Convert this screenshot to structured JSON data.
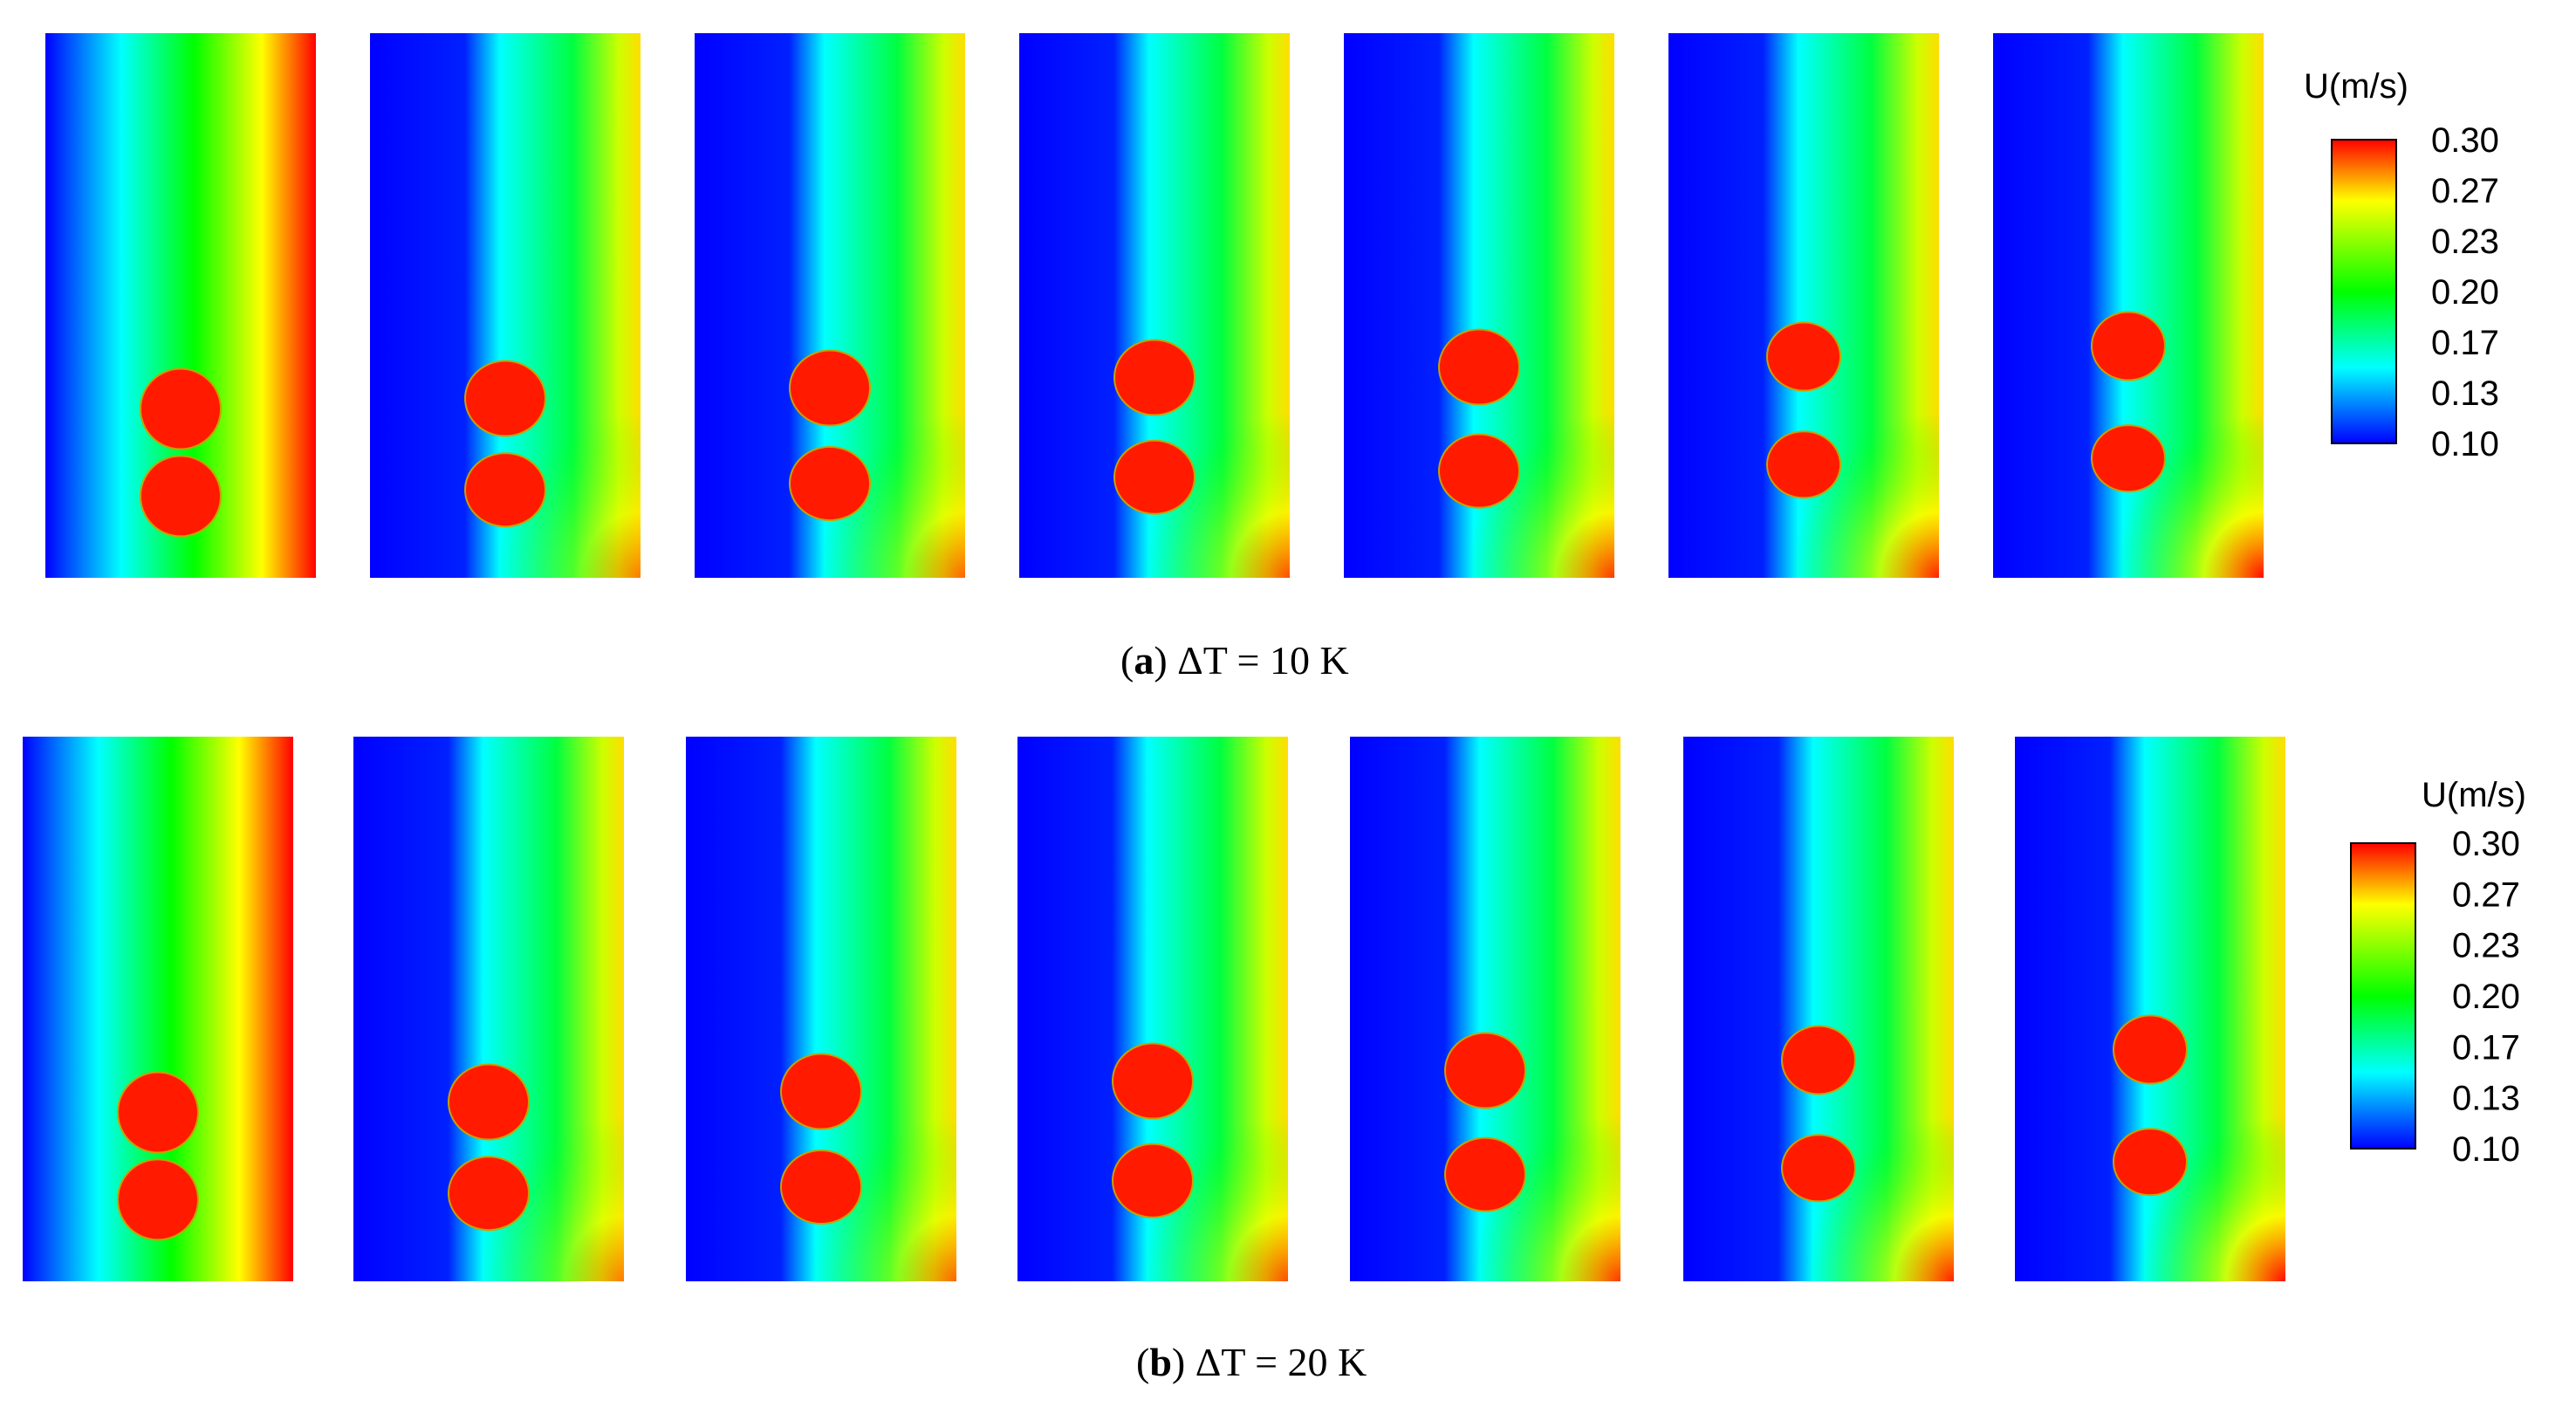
{
  "figure": {
    "rows": [
      {
        "caption": {
          "label": "a",
          "text": "ΔT = 10 K"
        },
        "colorbar": {
          "title": "U(m/s)",
          "ticks": [
            "0.30",
            "0.27",
            "0.23",
            "0.20",
            "0.17",
            "0.13",
            "0.10"
          ]
        },
        "panel_count": 7
      },
      {
        "caption": {
          "label": "b",
          "text": "ΔT = 20 K"
        },
        "colorbar": {
          "title": "U(m/s)",
          "ticks": [
            "0.30",
            "0.27",
            "0.23",
            "0.20",
            "0.17",
            "0.13",
            "0.10"
          ]
        },
        "panel_count": 7
      }
    ],
    "colormap": [
      "#0000ff",
      "#00ffff",
      "#00ff00",
      "#ffff00",
      "#ff0000"
    ],
    "droplet_color": "#ff1a00"
  }
}
